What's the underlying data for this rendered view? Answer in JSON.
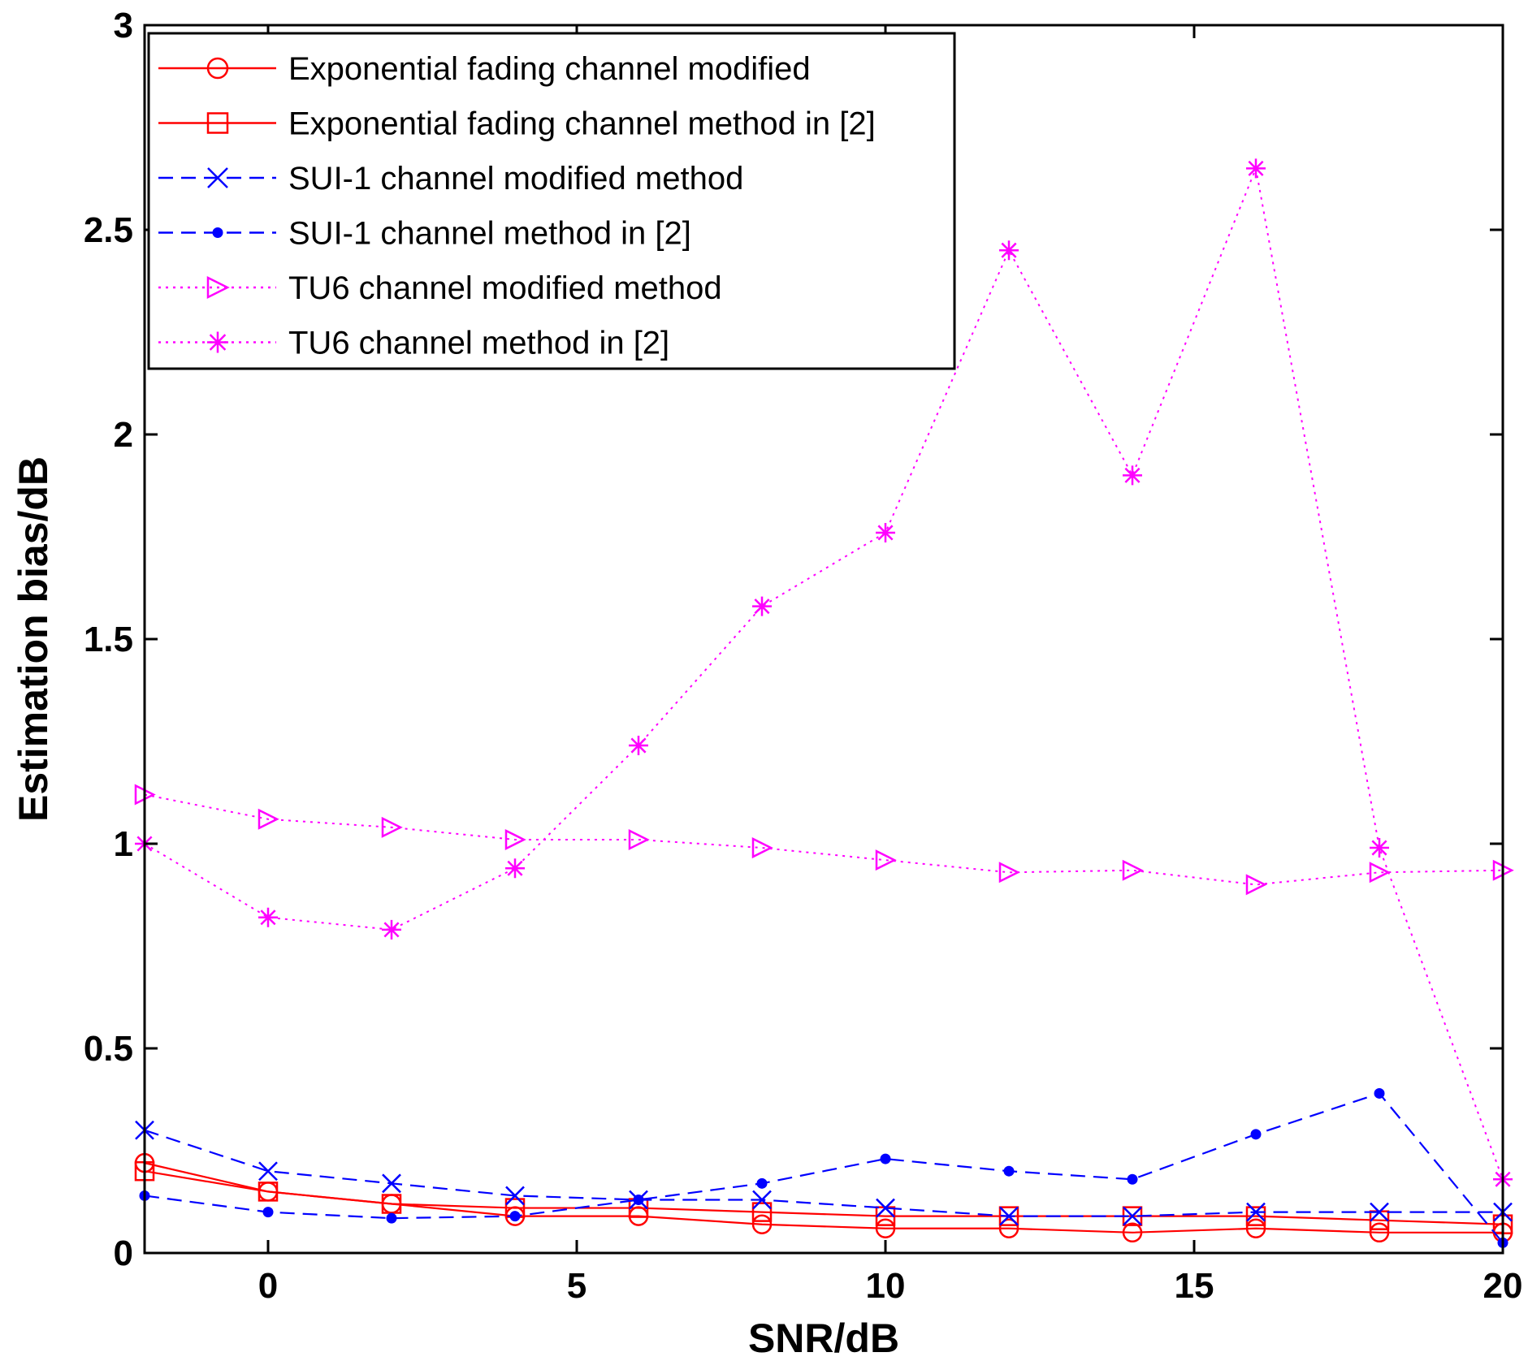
{
  "chart_data": {
    "type": "line",
    "title": "",
    "xlabel": "SNR/dB",
    "ylabel": "Estimation bias/dB",
    "xlim": [
      -2,
      20
    ],
    "ylim": [
      0,
      3
    ],
    "xticks": [
      0,
      5,
      10,
      15,
      20
    ],
    "yticks": [
      0,
      0.5,
      1,
      1.5,
      2,
      2.5,
      3
    ],
    "xtick_labels": [
      "0",
      "5",
      "10",
      "15",
      "20"
    ],
    "ytick_labels": [
      "0",
      "0.5",
      "1",
      "1.5",
      "2",
      "2.5",
      "3"
    ],
    "grid": false,
    "legend_position": "top-left",
    "x": [
      -2,
      0,
      2,
      4,
      6,
      8,
      10,
      12,
      14,
      16,
      18,
      20
    ],
    "series": [
      {
        "name": "Exponential fading channel modified",
        "color": "#ff0000",
        "line_style": "solid",
        "marker": "circle",
        "values": [
          0.22,
          0.15,
          0.12,
          0.09,
          0.09,
          0.07,
          0.06,
          0.06,
          0.05,
          0.06,
          0.05,
          0.05
        ]
      },
      {
        "name": "Exponential fading channel method in [2]",
        "color": "#ff0000",
        "line_style": "solid",
        "marker": "square",
        "values": [
          0.2,
          0.15,
          0.12,
          0.11,
          0.11,
          0.1,
          0.09,
          0.09,
          0.09,
          0.09,
          0.08,
          0.07
        ]
      },
      {
        "name": "SUI-1 channel modified method",
        "color": "#0000ff",
        "line_style": "dashed",
        "marker": "x",
        "values": [
          0.3,
          0.2,
          0.17,
          0.14,
          0.13,
          0.13,
          0.11,
          0.09,
          0.09,
          0.1,
          0.1,
          0.1
        ]
      },
      {
        "name": "SUI-1 channel method in [2]",
        "color": "#0000ff",
        "line_style": "dashed",
        "marker": "dot",
        "values": [
          0.14,
          0.1,
          0.085,
          0.09,
          0.13,
          0.17,
          0.23,
          0.2,
          0.18,
          0.29,
          0.39,
          0.025
        ]
      },
      {
        "name": "TU6 channel modified method",
        "color": "#ff00ff",
        "line_style": "dotted",
        "marker": "triangle-right",
        "values": [
          1.12,
          1.06,
          1.04,
          1.01,
          1.01,
          0.99,
          0.96,
          0.93,
          0.935,
          0.9,
          0.93,
          0.935
        ]
      },
      {
        "name": "TU6 channel method in [2]",
        "color": "#ff00ff",
        "line_style": "dotted",
        "marker": "star",
        "values": [
          1.0,
          0.82,
          0.79,
          0.94,
          1.24,
          1.58,
          1.76,
          2.45,
          1.9,
          2.65,
          0.99,
          0.18
        ]
      }
    ]
  }
}
